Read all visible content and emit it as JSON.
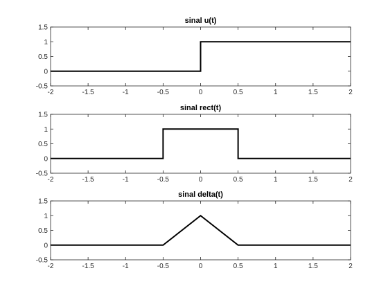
{
  "chart_data": [
    {
      "type": "line",
      "title": "sinal u(t)",
      "xlim": [
        -2,
        2
      ],
      "ylim": [
        -0.5,
        1.5
      ],
      "xticks": [
        "-2",
        "-1.5",
        "-1",
        "-0.5",
        "0",
        "0.5",
        "1",
        "1.5",
        "2"
      ],
      "yticks": [
        "-0.5",
        "0",
        "0.5",
        "1",
        "1.5"
      ],
      "grid": false,
      "line_color": "#000000",
      "series": [
        {
          "x": [
            -2,
            0,
            0,
            2
          ],
          "y": [
            0,
            0,
            1,
            1
          ]
        }
      ]
    },
    {
      "type": "line",
      "title": "sinal rect(t)",
      "xlim": [
        -2,
        2
      ],
      "ylim": [
        -0.5,
        1.5
      ],
      "xticks": [
        "-2",
        "-1.5",
        "-1",
        "-0.5",
        "0",
        "0.5",
        "1",
        "1.5",
        "2"
      ],
      "yticks": [
        "-0.5",
        "0",
        "0.5",
        "1",
        "1.5"
      ],
      "grid": false,
      "line_color": "#000000",
      "series": [
        {
          "x": [
            -2,
            -0.5,
            -0.5,
            0.5,
            0.5,
            2
          ],
          "y": [
            0,
            0,
            1,
            1,
            0,
            0
          ]
        }
      ]
    },
    {
      "type": "line",
      "title": "sinal delta(t)",
      "xlim": [
        -2,
        2
      ],
      "ylim": [
        -0.5,
        1.5
      ],
      "xticks": [
        "-2",
        "-1.5",
        "-1",
        "-0.5",
        "0",
        "0.5",
        "1",
        "1.5",
        "2"
      ],
      "yticks": [
        "-0.5",
        "0",
        "0.5",
        "1",
        "1.5"
      ],
      "grid": false,
      "line_color": "#000000",
      "series": [
        {
          "x": [
            -2,
            -0.5,
            0,
            0.5,
            2
          ],
          "y": [
            0,
            0,
            1,
            0,
            0
          ]
        }
      ]
    }
  ]
}
